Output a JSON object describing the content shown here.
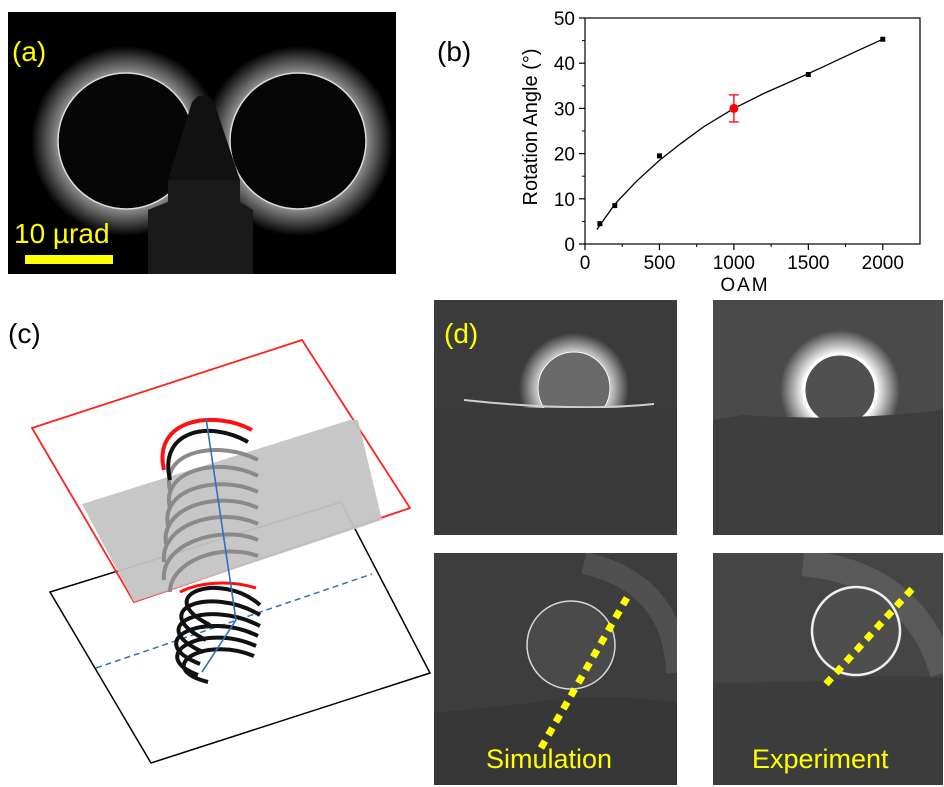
{
  "panels": {
    "a": {
      "label": "(a)",
      "scalebar_label": "10 µrad"
    },
    "b": {
      "label": "(b)"
    },
    "c": {
      "label": "(c)"
    },
    "d": {
      "label": "(d)",
      "captions": {
        "simulation": "Simulation",
        "experiment": "Experiment"
      }
    }
  },
  "colors": {
    "label_yellow": "#ffff00",
    "error_red": "#ff0000",
    "plane_red": "#ff0000",
    "axis_blue": "#3070c0"
  },
  "chart_data": {
    "type": "scatter",
    "xlabel": "OAM",
    "ylabel": "Rotation Angle (°)",
    "xlim": [
      0,
      2250
    ],
    "ylim": [
      0,
      50
    ],
    "xticks": [
      "0",
      "500",
      "1000",
      "1500",
      "2000"
    ],
    "yticks": [
      "0",
      "10",
      "20",
      "30",
      "40",
      "50"
    ],
    "points": [
      {
        "x": 100,
        "y": 4.5
      },
      {
        "x": 200,
        "y": 8.5
      },
      {
        "x": 500,
        "y": 19.5
      },
      {
        "x": 1500,
        "y": 37.5
      },
      {
        "x": 2000,
        "y": 45.3
      }
    ],
    "highlight_point": {
      "x": 1000,
      "y": 30,
      "error": 3,
      "color": "#ff0000"
    },
    "fit_curve": [
      [
        80,
        3.2
      ],
      [
        200,
        8.8
      ],
      [
        350,
        14.0
      ],
      [
        500,
        18.5
      ],
      [
        650,
        22.4
      ],
      [
        800,
        26.0
      ],
      [
        1000,
        30.0
      ],
      [
        1200,
        33.3
      ],
      [
        1400,
        36.2
      ],
      [
        1600,
        39.2
      ],
      [
        1800,
        42.3
      ],
      [
        2000,
        45.3
      ]
    ]
  }
}
